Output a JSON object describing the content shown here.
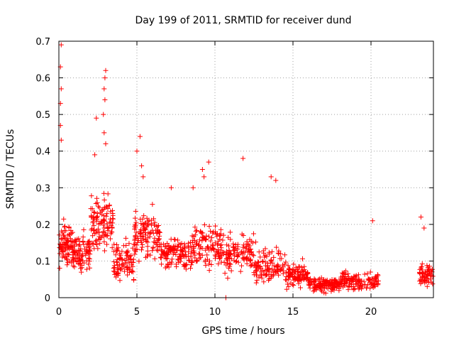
{
  "chart_data": {
    "type": "scatter",
    "title": "Day 199 of 2011, SRMTID for receiver dund",
    "xlabel": "GPS time / hours",
    "ylabel": "SRMTID / TECUs",
    "xlim": [
      0,
      24
    ],
    "ylim": [
      0,
      0.7
    ],
    "xticks": [
      0,
      5,
      10,
      15,
      20
    ],
    "xtick_labels": [
      "0",
      "5",
      "10",
      "15",
      "20"
    ],
    "yticks": [
      0,
      0.1,
      0.2,
      0.3,
      0.4,
      0.5,
      0.6,
      0.7
    ],
    "ytick_labels": [
      "0",
      "0.1",
      "0.2",
      "0.3",
      "0.4",
      "0.5",
      "0.6",
      "0.7"
    ],
    "grid": true,
    "marker": "+",
    "color": "#ff0000",
    "notable_points": [
      {
        "x": 0.15,
        "y": 0.69
      },
      {
        "x": 0.1,
        "y": 0.63
      },
      {
        "x": 0.15,
        "y": 0.57
      },
      {
        "x": 0.1,
        "y": 0.53
      },
      {
        "x": 0.1,
        "y": 0.47
      },
      {
        "x": 0.15,
        "y": 0.43
      },
      {
        "x": 3.0,
        "y": 0.62
      },
      {
        "x": 2.95,
        "y": 0.6
      },
      {
        "x": 2.9,
        "y": 0.57
      },
      {
        "x": 2.95,
        "y": 0.54
      },
      {
        "x": 2.85,
        "y": 0.5
      },
      {
        "x": 2.4,
        "y": 0.49
      },
      {
        "x": 2.9,
        "y": 0.45
      },
      {
        "x": 3.0,
        "y": 0.42
      },
      {
        "x": 2.3,
        "y": 0.39
      },
      {
        "x": 5.2,
        "y": 0.44
      },
      {
        "x": 5.0,
        "y": 0.4
      },
      {
        "x": 5.3,
        "y": 0.36
      },
      {
        "x": 5.4,
        "y": 0.33
      },
      {
        "x": 11.8,
        "y": 0.38
      },
      {
        "x": 9.6,
        "y": 0.37
      },
      {
        "x": 9.2,
        "y": 0.35
      },
      {
        "x": 9.3,
        "y": 0.33
      },
      {
        "x": 13.6,
        "y": 0.33
      },
      {
        "x": 13.9,
        "y": 0.32
      },
      {
        "x": 8.6,
        "y": 0.3
      },
      {
        "x": 7.2,
        "y": 0.3
      },
      {
        "x": 20.1,
        "y": 0.21
      },
      {
        "x": 23.2,
        "y": 0.22
      },
      {
        "x": 23.4,
        "y": 0.19
      },
      {
        "x": 10.7,
        "y": 0.0
      }
    ],
    "clusters": [
      {
        "x_range": [
          0.0,
          0.9
        ],
        "y_center": 0.14,
        "y_spread": 0.1,
        "count": 90
      },
      {
        "x_range": [
          0.9,
          2.0
        ],
        "y_center": 0.12,
        "y_spread": 0.08,
        "count": 90
      },
      {
        "x_range": [
          2.0,
          3.5
        ],
        "y_center": 0.2,
        "y_spread": 0.12,
        "count": 110
      },
      {
        "x_range": [
          3.5,
          4.8
        ],
        "y_center": 0.1,
        "y_spread": 0.07,
        "count": 90
      },
      {
        "x_range": [
          4.8,
          6.5
        ],
        "y_center": 0.17,
        "y_spread": 0.1,
        "count": 120
      },
      {
        "x_range": [
          6.5,
          8.5
        ],
        "y_center": 0.12,
        "y_spread": 0.07,
        "count": 120
      },
      {
        "x_range": [
          8.5,
          10.5
        ],
        "y_center": 0.14,
        "y_spread": 0.09,
        "count": 120
      },
      {
        "x_range": [
          10.5,
          12.5
        ],
        "y_center": 0.12,
        "y_spread": 0.08,
        "count": 110
      },
      {
        "x_range": [
          12.5,
          14.5
        ],
        "y_center": 0.09,
        "y_spread": 0.07,
        "count": 110
      },
      {
        "x_range": [
          14.5,
          16.0
        ],
        "y_center": 0.06,
        "y_spread": 0.05,
        "count": 100
      },
      {
        "x_range": [
          16.0,
          18.0
        ],
        "y_center": 0.035,
        "y_spread": 0.03,
        "count": 130
      },
      {
        "x_range": [
          18.0,
          20.5
        ],
        "y_center": 0.045,
        "y_spread": 0.04,
        "count": 130
      },
      {
        "x_range": [
          23.1,
          24.0
        ],
        "y_center": 0.06,
        "y_spread": 0.05,
        "count": 60
      }
    ]
  }
}
